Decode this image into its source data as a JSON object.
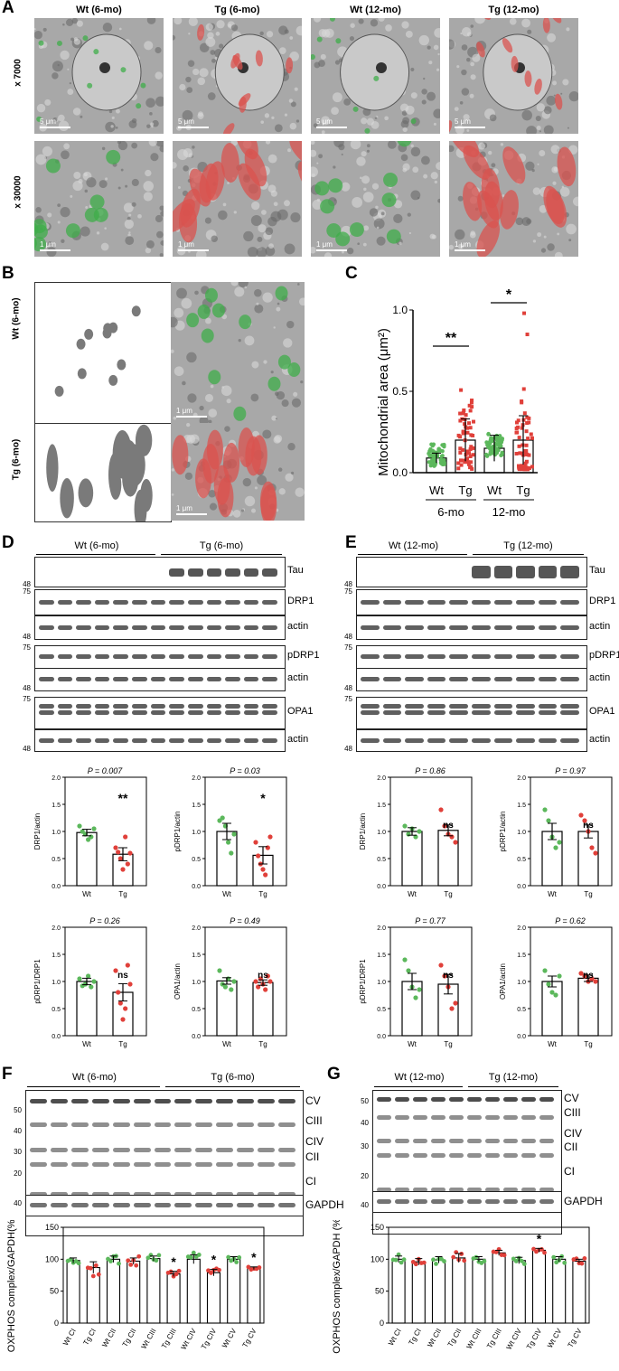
{
  "panels": {
    "A": "A",
    "B": "B",
    "C": "C",
    "D": "D",
    "E": "E",
    "F": "F",
    "G": "G"
  },
  "panelA": {
    "headers": [
      "Wt (6-mo)",
      "Tg (6-mo)",
      "Wt (12-mo)",
      "Tg (12-mo)"
    ],
    "rows": [
      "x 7000",
      "x 30000"
    ],
    "scale_top": "5 μm",
    "scale_bottom": "1 μm"
  },
  "panelB": {
    "rows": [
      "Wt (6-mo)",
      "Tg (6-mo)"
    ],
    "scale": "1 μm"
  },
  "panelC": {
    "ylabel": "Mitochondrial area (μm²)",
    "yticks": [
      "0.0",
      "0.5",
      "1.0"
    ],
    "groups": [
      "Wt",
      "Tg",
      "Wt",
      "Tg"
    ],
    "ages": [
      "6-mo",
      "12-mo"
    ],
    "sig": [
      "**",
      "*"
    ]
  },
  "panelD": {
    "groups": [
      "Wt (6-mo)",
      "Tg (6-mo)"
    ],
    "blots": [
      "Tau",
      "DRP1",
      "actin",
      "pDRP1",
      "actin",
      "OPA1",
      "actin"
    ],
    "mw": [
      "48",
      "75",
      "48",
      "75",
      "48",
      "75",
      "48"
    ]
  },
  "panelE": {
    "groups": [
      "Wt (12-mo)",
      "Tg (12-mo)"
    ],
    "blots": [
      "Tau",
      "DRP1",
      "actin",
      "pDRP1",
      "actin",
      "OPA1",
      "actin"
    ],
    "mw": [
      "48",
      "75",
      "48",
      "75",
      "48",
      "75",
      "48"
    ]
  },
  "panelF": {
    "groups": [
      "Wt (6-mo)",
      "Tg (6-mo)"
    ],
    "complexes": [
      "CV",
      "CIII",
      "CIV",
      "CII",
      "CI"
    ],
    "loading": "GAPDH",
    "mw": [
      "50",
      "40",
      "30",
      "20",
      "40"
    ]
  },
  "panelG": {
    "groups": [
      "Wt (12-mo)",
      "Tg (12-mo)"
    ],
    "complexes": [
      "CV",
      "CIII",
      "CIV",
      "CII",
      "CI"
    ],
    "loading": "GAPDH",
    "mw": [
      "50",
      "40",
      "30",
      "20",
      "40"
    ]
  },
  "colors": {
    "wt": "#5cb85c",
    "tg": "#e0403a",
    "wt_overlay": "#3fae49",
    "tg_overlay": "#d9534f"
  },
  "chart_data": [
    {
      "id": "C",
      "type": "bar",
      "ylabel": "Mitochondrial area (μm²)",
      "categories": [
        "Wt 6-mo",
        "Tg 6-mo",
        "Wt 12-mo",
        "Tg 12-mo"
      ],
      "values": [
        0.09,
        0.2,
        0.15,
        0.2
      ],
      "errors": [
        0.03,
        0.13,
        0.08,
        0.15
      ],
      "ylim": [
        0,
        1.0
      ],
      "annotations": [
        "**",
        "*"
      ]
    },
    {
      "id": "D1",
      "type": "bar",
      "title": "P = 0.007",
      "ylabel": "DRP1/actin",
      "categories": [
        "Wt",
        "Tg"
      ],
      "values": [
        0.98,
        0.58
      ],
      "errors": [
        0.06,
        0.12
      ],
      "ylim": [
        0,
        2.0
      ],
      "annotation": "**",
      "points": [
        [
          1.1,
          1.0,
          0.95,
          0.85,
          0.9,
          1.05
        ],
        [
          0.7,
          0.62,
          0.5,
          0.3,
          0.9,
          0.4,
          0.6
        ]
      ]
    },
    {
      "id": "D2",
      "type": "bar",
      "title": "P = 0.03",
      "ylabel": "pDRP1/actin",
      "categories": [
        "Wt",
        "Tg"
      ],
      "values": [
        1.0,
        0.56
      ],
      "errors": [
        0.15,
        0.16
      ],
      "ylim": [
        0,
        2.0
      ],
      "annotation": "*",
      "points": [
        [
          1.2,
          1.25,
          1.1,
          0.8,
          0.6,
          0.95
        ],
        [
          0.8,
          0.55,
          0.4,
          0.3,
          0.2,
          0.7,
          0.9
        ]
      ]
    },
    {
      "id": "D3",
      "type": "bar",
      "title": "P = 0.26",
      "ylabel": "pDRP1/DRP1",
      "categories": [
        "Wt",
        "Tg"
      ],
      "values": [
        1.0,
        0.8
      ],
      "errors": [
        0.06,
        0.16
      ],
      "ylim": [
        0,
        2.0
      ],
      "annotation": "ns",
      "points": [
        [
          1.05,
          0.92,
          0.95,
          1.1,
          0.9,
          1.0
        ],
        [
          1.2,
          0.8,
          0.6,
          0.3,
          0.5,
          1.3,
          0.95
        ]
      ]
    },
    {
      "id": "D4",
      "type": "bar",
      "title": "P = 0.49",
      "ylabel": "OPA1/actin",
      "categories": [
        "Wt",
        "Tg"
      ],
      "values": [
        1.01,
        0.98
      ],
      "errors": [
        0.06,
        0.05
      ],
      "ylim": [
        0,
        2.0
      ],
      "annotation": "ns",
      "points": [
        [
          1.2,
          0.95,
          0.9,
          1.05,
          0.85,
          1.0
        ],
        [
          1.0,
          0.9,
          1.05,
          0.95,
          0.85,
          1.1,
          1.0
        ]
      ]
    },
    {
      "id": "E1",
      "type": "bar",
      "title": "P = 0.86",
      "ylabel": "DRP1/actin",
      "categories": [
        "Wt",
        "Tg"
      ],
      "values": [
        1.0,
        1.02
      ],
      "errors": [
        0.07,
        0.1
      ],
      "ylim": [
        0,
        2.0
      ],
      "annotation": "ns",
      "points": [
        [
          1.1,
          0.95,
          1.05,
          0.9,
          1.0
        ],
        [
          1.4,
          1.1,
          0.95,
          0.9,
          0.8
        ]
      ]
    },
    {
      "id": "E2",
      "type": "bar",
      "title": "P = 0.97",
      "ylabel": "pDRP1/actin",
      "categories": [
        "Wt",
        "Tg"
      ],
      "values": [
        1.0,
        1.0
      ],
      "errors": [
        0.15,
        0.12
      ],
      "ylim": [
        0,
        2.0
      ],
      "annotation": "ns",
      "points": [
        [
          1.4,
          1.2,
          0.9,
          0.7,
          0.8
        ],
        [
          1.3,
          1.2,
          1.0,
          0.7,
          0.6
        ]
      ]
    },
    {
      "id": "E3",
      "type": "bar",
      "title": "P = 0.77",
      "ylabel": "pDRP1/DRP1",
      "categories": [
        "Wt",
        "Tg"
      ],
      "values": [
        1.0,
        0.95
      ],
      "errors": [
        0.15,
        0.18
      ],
      "ylim": [
        0,
        2.0
      ],
      "annotation": "ns",
      "points": [
        [
          1.4,
          1.2,
          0.9,
          0.7,
          0.85
        ],
        [
          1.3,
          1.1,
          0.9,
          0.5,
          0.6
        ]
      ]
    },
    {
      "id": "E4",
      "type": "bar",
      "title": "P = 0.62",
      "ylabel": "OPA1/actin",
      "categories": [
        "Wt",
        "Tg"
      ],
      "values": [
        1.0,
        1.06
      ],
      "errors": [
        0.1,
        0.06
      ],
      "ylim": [
        0,
        2.0
      ],
      "annotation": "ns",
      "points": [
        [
          1.2,
          0.95,
          0.8,
          0.75,
          1.1
        ],
        [
          1.15,
          1.1,
          1.0,
          1.05,
          1.0
        ]
      ]
    },
    {
      "id": "F",
      "type": "bar",
      "ylabel": "OXPHOS complex/GAPDH(%)",
      "categories": [
        "Wt CI",
        "Tg CI",
        "Wt CII",
        "Tg CII",
        "Wt CIII",
        "Tg CIII",
        "Wt CIV",
        "Tg CIV",
        "Wt CV",
        "Tg CV"
      ],
      "values": [
        98,
        87,
        100,
        97,
        101,
        77,
        100,
        79,
        100,
        86
      ],
      "errors": [
        4,
        9,
        5,
        5,
        4,
        4,
        7,
        5,
        4,
        2
      ],
      "ylim": [
        0,
        150
      ],
      "yticks": [
        0,
        50,
        100,
        150
      ],
      "annotations": {
        "Tg CIII": "*",
        "Tg CIV": "*",
        "Tg CV": "*"
      }
    },
    {
      "id": "G",
      "type": "bar",
      "ylabel": "OXPHOS complex/GAPDH (%)",
      "categories": [
        "Wt CI",
        "Tg CI",
        "Wt CII",
        "Tg CII",
        "Wt CIII",
        "Tg CIII",
        "Wt CIV",
        "Tg CIV",
        "Wt CV",
        "Tg CV"
      ],
      "values": [
        100,
        96,
        99,
        102,
        100,
        110,
        98,
        114,
        100,
        97
      ],
      "errors": [
        5,
        5,
        5,
        7,
        4,
        4,
        5,
        3,
        4,
        3
      ],
      "ylim": [
        0,
        150
      ],
      "yticks": [
        0,
        50,
        100,
        150
      ],
      "annotations": {
        "Tg CIV": "*"
      }
    }
  ]
}
